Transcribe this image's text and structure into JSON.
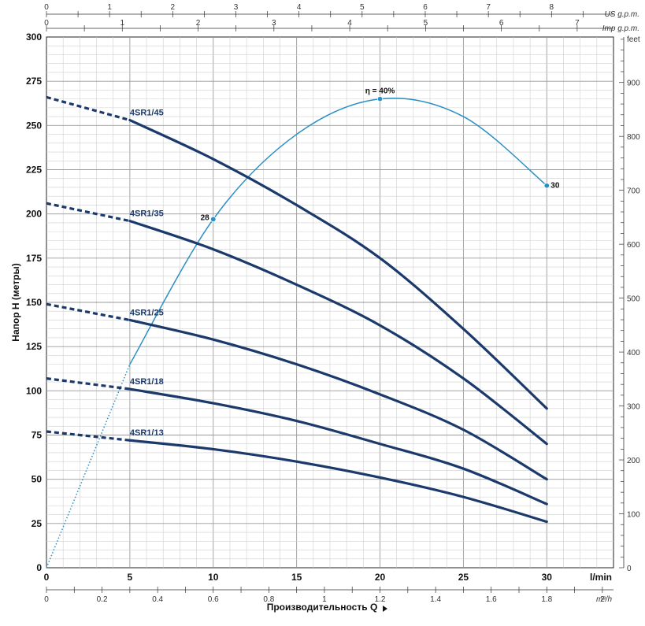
{
  "chart_data": {
    "type": "line",
    "title": "",
    "xlabel": "Производительность Q",
    "ylabel": "Напор H (метры)",
    "x_unit": "l/min",
    "xlim": [
      0,
      34
    ],
    "ylim": [
      0,
      300
    ],
    "x_ticks": [
      "0",
      "5",
      "10",
      "15",
      "20",
      "25",
      "30"
    ],
    "y_ticks": [
      "0",
      "25",
      "50",
      "75",
      "100",
      "125",
      "150",
      "175",
      "200",
      "225",
      "250",
      "275",
      "300"
    ],
    "right_axis": {
      "label": "feet",
      "ticks": [
        "0",
        "100",
        "200",
        "300",
        "400",
        "500",
        "600",
        "700",
        "800",
        "900"
      ]
    },
    "top_axis_us": {
      "label": "US g.p.m.",
      "ticks": [
        "0",
        "1",
        "2",
        "3",
        "4",
        "5",
        "6",
        "7",
        "8"
      ]
    },
    "top_axis_imp": {
      "label": "Imp g.p.m.",
      "ticks": [
        "0",
        "1",
        "2",
        "3",
        "4",
        "5",
        "6",
        "7"
      ]
    },
    "bottom_axis_m3h": {
      "label": "m³/h",
      "ticks": [
        "0",
        "0.2",
        "0.4",
        "0.6",
        "0.8",
        "1",
        "1.2",
        "1.4",
        "1.6",
        "1.8",
        "2"
      ]
    },
    "series": [
      {
        "name": "4SR1/45",
        "color": "#1b3a6b",
        "solid_from": 5,
        "x": [
          0,
          5,
          10,
          15,
          20,
          25,
          30
        ],
        "y": [
          266,
          253,
          231,
          205,
          175,
          135,
          90
        ]
      },
      {
        "name": "4SR1/35",
        "color": "#1b3a6b",
        "solid_from": 5,
        "x": [
          0,
          5,
          10,
          15,
          20,
          25,
          30
        ],
        "y": [
          206,
          196,
          180,
          160,
          137,
          107,
          70
        ]
      },
      {
        "name": "4SR1/25",
        "color": "#1b3a6b",
        "solid_from": 5,
        "x": [
          0,
          5,
          10,
          15,
          20,
          25,
          30
        ],
        "y": [
          149,
          140,
          129,
          115,
          98,
          78,
          50
        ]
      },
      {
        "name": "4SR1/18",
        "color": "#1b3a6b",
        "solid_from": 5,
        "x": [
          0,
          5,
          10,
          15,
          20,
          25,
          30
        ],
        "y": [
          107,
          101,
          93,
          83,
          70,
          56,
          36
        ]
      },
      {
        "name": "4SR1/13",
        "color": "#1b3a6b",
        "solid_from": 5,
        "x": [
          0,
          5,
          10,
          15,
          20,
          25,
          30
        ],
        "y": [
          77,
          72,
          67,
          60,
          51,
          40,
          26
        ]
      }
    ],
    "efficiency_curve": {
      "name": "η",
      "color": "#2a8fc4",
      "solid_from": 5,
      "x": [
        0,
        5,
        10,
        15,
        20,
        25,
        30
      ],
      "y": [
        0,
        115,
        197,
        245,
        265,
        255,
        216
      ],
      "markers": [
        {
          "x": 10,
          "y": 197,
          "label": "28"
        },
        {
          "x": 20,
          "y": 265,
          "label": "η = 40%"
        },
        {
          "x": 30,
          "y": 216,
          "label": "30"
        }
      ]
    }
  }
}
